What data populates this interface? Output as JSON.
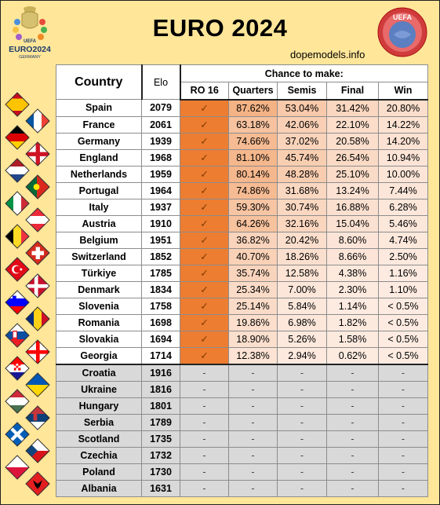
{
  "title": "EURO 2024",
  "subtitle": "dopemodels.info",
  "logo_left": {
    "line1": "EURO2024",
    "line2": "GERMANY",
    "badge": "UEFA"
  },
  "logo_right": {
    "text": "UEFA"
  },
  "headers": {
    "country": "Country",
    "elo": "Elo",
    "chance": "Chance to make:",
    "columns": [
      "RO 16",
      "Quarters",
      "Semis",
      "Final",
      "Win"
    ]
  },
  "colors": {
    "background": "#ffe699",
    "ro16": "#ed7d31",
    "eliminated": "#d9d9d9",
    "heat_max": "#f4b183"
  },
  "chart_data": {
    "type": "table",
    "rows": [
      {
        "country": "Spain",
        "elo": "2079",
        "ro16": "✓",
        "quarters": "87.62%",
        "semis": "53.04%",
        "final": "31.42%",
        "win": "20.80%"
      },
      {
        "country": "France",
        "elo": "2061",
        "ro16": "✓",
        "quarters": "63.18%",
        "semis": "42.06%",
        "final": "22.10%",
        "win": "14.22%"
      },
      {
        "country": "Germany",
        "elo": "1939",
        "ro16": "✓",
        "quarters": "74.66%",
        "semis": "37.02%",
        "final": "20.58%",
        "win": "14.20%"
      },
      {
        "country": "England",
        "elo": "1968",
        "ro16": "✓",
        "quarters": "81.10%",
        "semis": "45.74%",
        "final": "26.54%",
        "win": "10.94%"
      },
      {
        "country": "Netherlands",
        "elo": "1959",
        "ro16": "✓",
        "quarters": "80.14%",
        "semis": "48.28%",
        "final": "25.10%",
        "win": "10.00%"
      },
      {
        "country": "Portugal",
        "elo": "1964",
        "ro16": "✓",
        "quarters": "74.86%",
        "semis": "31.68%",
        "final": "13.24%",
        "win": "7.44%"
      },
      {
        "country": "Italy",
        "elo": "1937",
        "ro16": "✓",
        "quarters": "59.30%",
        "semis": "30.74%",
        "final": "16.88%",
        "win": "6.28%"
      },
      {
        "country": "Austria",
        "elo": "1910",
        "ro16": "✓",
        "quarters": "64.26%",
        "semis": "32.16%",
        "final": "15.04%",
        "win": "5.46%"
      },
      {
        "country": "Belgium",
        "elo": "1951",
        "ro16": "✓",
        "quarters": "36.82%",
        "semis": "20.42%",
        "final": "8.60%",
        "win": "4.74%"
      },
      {
        "country": "Switzerland",
        "elo": "1852",
        "ro16": "✓",
        "quarters": "40.70%",
        "semis": "18.26%",
        "final": "8.66%",
        "win": "2.50%"
      },
      {
        "country": "Türkiye",
        "elo": "1785",
        "ro16": "✓",
        "quarters": "35.74%",
        "semis": "12.58%",
        "final": "4.38%",
        "win": "1.16%"
      },
      {
        "country": "Denmark",
        "elo": "1834",
        "ro16": "✓",
        "quarters": "25.34%",
        "semis": "7.00%",
        "final": "2.30%",
        "win": "1.10%"
      },
      {
        "country": "Slovenia",
        "elo": "1758",
        "ro16": "✓",
        "quarters": "25.14%",
        "semis": "5.84%",
        "final": "1.14%",
        "win": "< 0.5%"
      },
      {
        "country": "Romania",
        "elo": "1698",
        "ro16": "✓",
        "quarters": "19.86%",
        "semis": "6.98%",
        "final": "1.82%",
        "win": "< 0.5%"
      },
      {
        "country": "Slovakia",
        "elo": "1694",
        "ro16": "✓",
        "quarters": "18.90%",
        "semis": "5.26%",
        "final": "1.58%",
        "win": "< 0.5%"
      },
      {
        "country": "Georgia",
        "elo": "1714",
        "ro16": "✓",
        "quarters": "12.38%",
        "semis": "2.94%",
        "final": "0.62%",
        "win": "< 0.5%"
      },
      {
        "country": "Croatia",
        "elo": "1916",
        "ro16": "-",
        "quarters": "-",
        "semis": "-",
        "final": "-",
        "win": "-"
      },
      {
        "country": "Ukraine",
        "elo": "1816",
        "ro16": "-",
        "quarters": "-",
        "semis": "-",
        "final": "-",
        "win": "-"
      },
      {
        "country": "Hungary",
        "elo": "1801",
        "ro16": "-",
        "quarters": "-",
        "semis": "-",
        "final": "-",
        "win": "-"
      },
      {
        "country": "Serbia",
        "elo": "1789",
        "ro16": "-",
        "quarters": "-",
        "semis": "-",
        "final": "-",
        "win": "-"
      },
      {
        "country": "Scotland",
        "elo": "1735",
        "ro16": "-",
        "quarters": "-",
        "semis": "-",
        "final": "-",
        "win": "-"
      },
      {
        "country": "Czechia",
        "elo": "1732",
        "ro16": "-",
        "quarters": "-",
        "semis": "-",
        "final": "-",
        "win": "-"
      },
      {
        "country": "Poland",
        "elo": "1730",
        "ro16": "-",
        "quarters": "-",
        "semis": "-",
        "final": "-",
        "win": "-"
      },
      {
        "country": "Albania",
        "elo": "1631",
        "ro16": "-",
        "quarters": "-",
        "semis": "-",
        "final": "-",
        "win": "-"
      }
    ]
  },
  "flags": [
    "spain-flag-icon",
    "france-flag-icon",
    "germany-flag-icon",
    "england-flag-icon",
    "netherlands-flag-icon",
    "portugal-flag-icon",
    "italy-flag-icon",
    "austria-flag-icon",
    "belgium-flag-icon",
    "switzerland-flag-icon",
    "turkiye-flag-icon",
    "denmark-flag-icon",
    "slovenia-flag-icon",
    "romania-flag-icon",
    "slovakia-flag-icon",
    "georgia-flag-icon",
    "croatia-flag-icon",
    "ukraine-flag-icon",
    "hungary-flag-icon",
    "serbia-flag-icon",
    "scotland-flag-icon",
    "czechia-flag-icon",
    "poland-flag-icon",
    "albania-flag-icon"
  ]
}
